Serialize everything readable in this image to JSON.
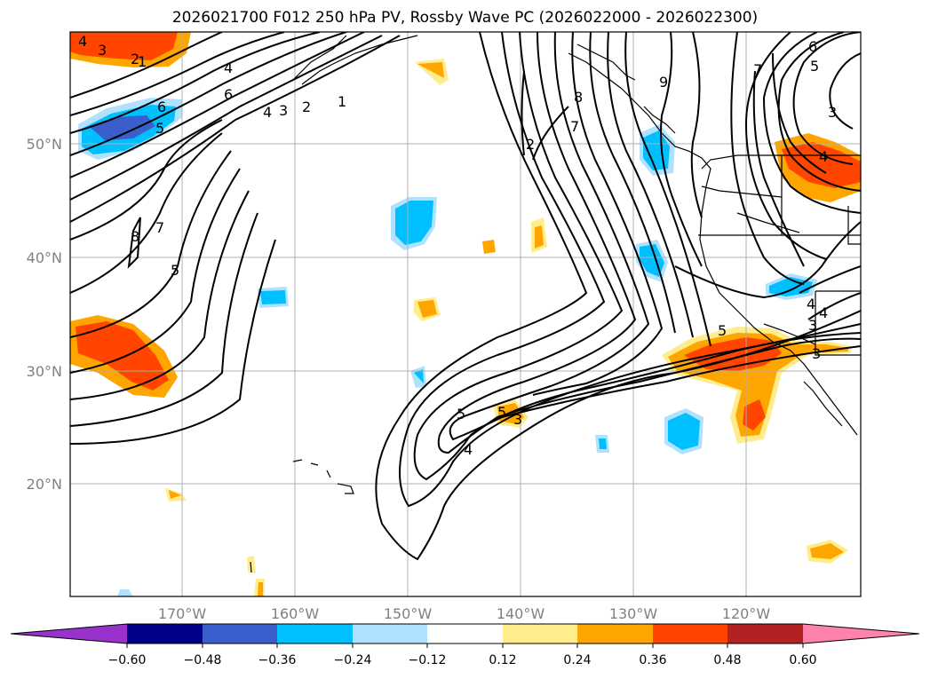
{
  "title": "2026021700 F012 250 hPa PV, Rossby Wave PC (2026022000 - 2026022300)",
  "axes": {
    "lon_labels": [
      "170°W",
      "160°W",
      "150°W",
      "140°W",
      "130°W",
      "120°W"
    ],
    "lat_labels": [
      "50°N",
      "40°N",
      "30°N",
      "20°N"
    ]
  },
  "colorbar": {
    "ticks": [
      "−0.60",
      "−0.48",
      "−0.36",
      "−0.24",
      "−0.12",
      "0.12",
      "0.24",
      "0.36",
      "0.48",
      "0.60"
    ],
    "colors": [
      "#9932cc",
      "#00008b",
      "#3a5fcd",
      "#00bfff",
      "#b0e2ff",
      "#ffffff",
      "#ffec8b",
      "#ffa500",
      "#ff4500",
      "#b22222",
      "#ff82ab"
    ]
  },
  "contour_labels": [
    "1",
    "2",
    "3",
    "4",
    "4",
    "6",
    "7",
    "8",
    "5",
    "1",
    "2",
    "3",
    "4",
    "5",
    "6",
    "7",
    "8",
    "9",
    "7",
    "6",
    "5",
    "3",
    "4",
    "5",
    "4",
    "2",
    "3",
    "3",
    "4",
    "5",
    "4",
    "3",
    "5"
  ]
}
